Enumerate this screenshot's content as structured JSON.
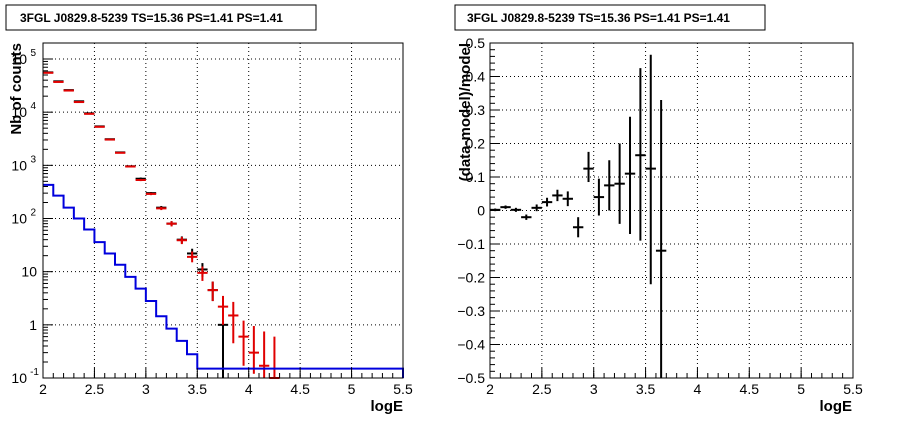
{
  "chart_data": [
    {
      "type": "scatter",
      "title": "3FGL J0829.8-5239 TS=15.36 PS=1.41 PS=1.41",
      "xlabel": "logE",
      "ylabel": "Nb of counts",
      "xlim": [
        2,
        5.5
      ],
      "ylim": [
        0.1,
        200000
      ],
      "yscale": "log",
      "grid": true,
      "x_ticks": [
        "2",
        "2.5",
        "3",
        "3.5",
        "4",
        "4.5",
        "5",
        "5.5"
      ],
      "y_ticks": [
        {
          "value": 0.1,
          "label": "10",
          "exp": "-1"
        },
        {
          "value": 1,
          "label": "1",
          "exp": ""
        },
        {
          "value": 10,
          "label": "10",
          "exp": ""
        },
        {
          "value": 100,
          "label": "10",
          "exp": "2"
        },
        {
          "value": 1000,
          "label": "10",
          "exp": "3"
        },
        {
          "value": 10000,
          "label": "10",
          "exp": "4"
        },
        {
          "value": 100000,
          "label": "10",
          "exp": "5"
        }
      ],
      "series": [
        {
          "color": "#000000",
          "style": "errorbar",
          "points": [
            {
              "x": 2.05,
              "y": 56000,
              "lo": 55500,
              "hi": 56500
            },
            {
              "x": 2.15,
              "y": 38000,
              "lo": 37600,
              "hi": 38400
            },
            {
              "x": 2.25,
              "y": 26000,
              "lo": 25700,
              "hi": 26300
            },
            {
              "x": 2.35,
              "y": 16000,
              "lo": 15800,
              "hi": 16200
            },
            {
              "x": 2.45,
              "y": 9500,
              "lo": 9300,
              "hi": 9700
            },
            {
              "x": 2.55,
              "y": 5400,
              "lo": 5300,
              "hi": 5500
            },
            {
              "x": 2.65,
              "y": 3100,
              "lo": 3040,
              "hi": 3160
            },
            {
              "x": 2.75,
              "y": 1750,
              "lo": 1700,
              "hi": 1800
            },
            {
              "x": 2.85,
              "y": 960,
              "lo": 930,
              "hi": 990
            },
            {
              "x": 2.95,
              "y": 560,
              "lo": 530,
              "hi": 590
            },
            {
              "x": 3.05,
              "y": 300,
              "lo": 285,
              "hi": 315
            },
            {
              "x": 3.15,
              "y": 160,
              "lo": 148,
              "hi": 172
            },
            {
              "x": 3.25,
              "y": 80,
              "lo": 72,
              "hi": 89
            },
            {
              "x": 3.35,
              "y": 40,
              "lo": 34,
              "hi": 46
            },
            {
              "x": 3.45,
              "y": 22,
              "lo": 17.5,
              "hi": 27
            },
            {
              "x": 3.55,
              "y": 11,
              "lo": 8,
              "hi": 14.5
            },
            {
              "x": 3.65,
              "y": 4.5,
              "lo": 2.8,
              "hi": 6.5
            },
            {
              "x": 3.75,
              "y": 1,
              "lo": 0.1,
              "hi": 2.3
            }
          ]
        },
        {
          "color": "#e00000",
          "style": "errorbar",
          "points": [
            {
              "x": 2.05,
              "y": 55000,
              "lo": 54500,
              "hi": 55500
            },
            {
              "x": 2.15,
              "y": 37000,
              "lo": 36600,
              "hi": 37400
            },
            {
              "x": 2.25,
              "y": 25500,
              "lo": 25200,
              "hi": 25800
            },
            {
              "x": 2.35,
              "y": 15500,
              "lo": 15300,
              "hi": 15700
            },
            {
              "x": 2.45,
              "y": 9300,
              "lo": 9100,
              "hi": 9500
            },
            {
              "x": 2.55,
              "y": 5300,
              "lo": 5200,
              "hi": 5400
            },
            {
              "x": 2.65,
              "y": 3050,
              "lo": 3000,
              "hi": 3100
            },
            {
              "x": 2.75,
              "y": 1720,
              "lo": 1680,
              "hi": 1760
            },
            {
              "x": 2.85,
              "y": 950,
              "lo": 920,
              "hi": 980
            },
            {
              "x": 2.95,
              "y": 530,
              "lo": 505,
              "hi": 555
            },
            {
              "x": 3.05,
              "y": 290,
              "lo": 275,
              "hi": 305
            },
            {
              "x": 3.15,
              "y": 155,
              "lo": 144,
              "hi": 166
            },
            {
              "x": 3.25,
              "y": 80,
              "lo": 71,
              "hi": 89
            },
            {
              "x": 3.35,
              "y": 39,
              "lo": 33,
              "hi": 45
            },
            {
              "x": 3.45,
              "y": 19,
              "lo": 15,
              "hi": 24
            },
            {
              "x": 3.55,
              "y": 9.5,
              "lo": 6.7,
              "hi": 12.5
            },
            {
              "x": 3.65,
              "y": 4.5,
              "lo": 2.8,
              "hi": 6.5
            },
            {
              "x": 3.75,
              "y": 2.2,
              "lo": 1.0,
              "hi": 3.5
            },
            {
              "x": 3.85,
              "y": 1.5,
              "lo": 0.45,
              "hi": 2.7
            },
            {
              "x": 3.95,
              "y": 0.6,
              "lo": 0.17,
              "hi": 1.2
            },
            {
              "x": 4.05,
              "y": 0.3,
              "lo": 0.12,
              "hi": 0.95
            },
            {
              "x": 4.15,
              "y": 0.17,
              "lo": 0.1,
              "hi": 0.75
            },
            {
              "x": 4.25,
              "y": 0.1,
              "lo": 0.1,
              "hi": 0.6
            }
          ]
        },
        {
          "color": "#0000dd",
          "style": "step",
          "edges": [
            2.0,
            2.1,
            2.2,
            2.3,
            2.4,
            2.5,
            2.6,
            2.7,
            2.8,
            2.9,
            3.0,
            3.1,
            3.2,
            3.3,
            3.4,
            3.5,
            5.5
          ],
          "values": [
            430,
            270,
            160,
            100,
            62,
            36,
            22,
            13.5,
            8,
            4.8,
            2.8,
            1.45,
            0.85,
            0.5,
            0.28,
            0.15,
            0.1
          ]
        }
      ]
    },
    {
      "type": "scatter",
      "title": "3FGL J0829.8-5239 TS=15.36 PS=1.41 PS=1.41",
      "xlabel": "logE",
      "ylabel": "(data-model)/model",
      "xlim": [
        2,
        5.5
      ],
      "ylim": [
        -0.5,
        0.5
      ],
      "grid": true,
      "x_ticks": [
        "2",
        "2.5",
        "3",
        "3.5",
        "4",
        "4.5",
        "5",
        "5.5"
      ],
      "y_ticks": [
        "−0.5",
        "−0.4",
        "−0.3",
        "−0.2",
        "−0.1",
        "0",
        "0.1",
        "0.2",
        "0.3",
        "0.4",
        "0.5"
      ],
      "y_tick_values": [
        -0.5,
        -0.4,
        -0.3,
        -0.2,
        -0.1,
        0,
        0.1,
        0.2,
        0.3,
        0.4,
        0.5
      ],
      "series": [
        {
          "color": "#000000",
          "style": "errorbar",
          "points": [
            {
              "x": 2.05,
              "y": 0.002,
              "lo": -0.002,
              "hi": 0.006
            },
            {
              "x": 2.15,
              "y": 0.01,
              "lo": 0.005,
              "hi": 0.015
            },
            {
              "x": 2.25,
              "y": 0.002,
              "lo": -0.004,
              "hi": 0.008
            },
            {
              "x": 2.35,
              "y": -0.02,
              "lo": -0.028,
              "hi": -0.012
            },
            {
              "x": 2.45,
              "y": 0.008,
              "lo": -0.002,
              "hi": 0.018
            },
            {
              "x": 2.55,
              "y": 0.025,
              "lo": 0.012,
              "hi": 0.038
            },
            {
              "x": 2.65,
              "y": 0.045,
              "lo": 0.028,
              "hi": 0.062
            },
            {
              "x": 2.75,
              "y": 0.035,
              "lo": 0.013,
              "hi": 0.057
            },
            {
              "x": 2.85,
              "y": -0.05,
              "lo": -0.08,
              "hi": -0.02
            },
            {
              "x": 2.95,
              "y": 0.125,
              "lo": 0.085,
              "hi": 0.175
            },
            {
              "x": 3.05,
              "y": 0.04,
              "lo": -0.015,
              "hi": 0.095
            },
            {
              "x": 3.15,
              "y": 0.075,
              "lo": 0.0,
              "hi": 0.15
            },
            {
              "x": 3.25,
              "y": 0.08,
              "lo": -0.04,
              "hi": 0.2
            },
            {
              "x": 3.35,
              "y": 0.11,
              "lo": -0.07,
              "hi": 0.28
            },
            {
              "x": 3.45,
              "y": 0.165,
              "lo": -0.09,
              "hi": 0.425
            },
            {
              "x": 3.55,
              "y": 0.125,
              "lo": -0.22,
              "hi": 0.465
            },
            {
              "x": 3.65,
              "y": -0.12,
              "lo": -0.5,
              "hi": 0.33
            }
          ]
        }
      ]
    }
  ]
}
